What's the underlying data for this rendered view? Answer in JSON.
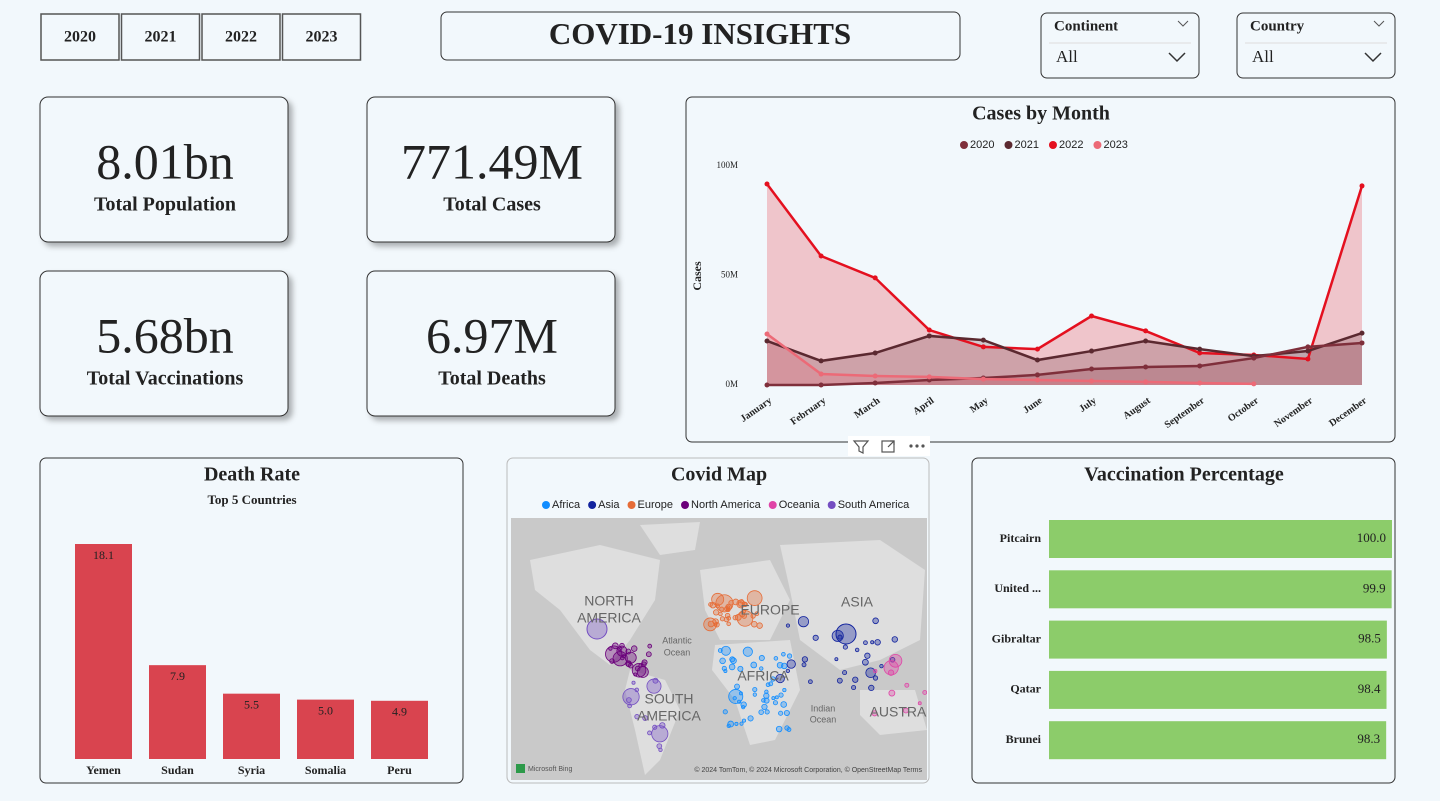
{
  "year_buttons": [
    "2020",
    "2021",
    "2022",
    "2023"
  ],
  "header": {
    "title": "COVID-19 INSIGHTS"
  },
  "slicers": [
    {
      "label": "Continent",
      "value": "All"
    },
    {
      "label": "Country",
      "value": "All"
    }
  ],
  "kpis": [
    {
      "value": "8.01bn",
      "label": "Total Population"
    },
    {
      "value": "771.49M",
      "label": "Total Cases"
    },
    {
      "value": "5.68bn",
      "label": "Total Vaccinations"
    },
    {
      "value": "6.97M",
      "label": "Total Deaths"
    }
  ],
  "chart_data": [
    {
      "type": "area",
      "title": "Cases by Month",
      "y_label": "Cases",
      "categories": [
        "January",
        "February",
        "March",
        "April",
        "May",
        "June",
        "July",
        "August",
        "September",
        "October",
        "November",
        "December"
      ],
      "ylim": [
        0,
        100000000
      ],
      "yticks": [
        {
          "value": 0,
          "label": "0M"
        },
        {
          "value": 50000000,
          "label": "50M"
        },
        {
          "value": 100000000,
          "label": "100M"
        }
      ],
      "series": [
        {
          "name": "2020",
          "color": "#7f2f3b",
          "values": [
            0,
            0,
            900000,
            2300000,
            3200000,
            4600000,
            7300000,
            8200000,
            8700000,
            12300000,
            17400000,
            19200000
          ]
        },
        {
          "name": "2021",
          "color": "#5b2930",
          "values": [
            20100000,
            11000000,
            14600000,
            22400000,
            20500000,
            11400000,
            15500000,
            20100000,
            16400000,
            13200000,
            15500000,
            23700000
          ]
        },
        {
          "name": "2022",
          "color": "#e4101f",
          "values": [
            91800000,
            58900000,
            48900000,
            25100000,
            17400000,
            16400000,
            31500000,
            24700000,
            14600000,
            13700000,
            11900000,
            90900000
          ]
        },
        {
          "name": "2023",
          "color": "#ec6a77",
          "values": [
            23300000,
            5000000,
            4100000,
            3700000,
            2700000,
            2300000,
            1800000,
            1400000,
            900000,
            500000,
            null,
            null
          ]
        }
      ]
    },
    {
      "type": "bar",
      "title": "Death Rate",
      "subtitle": "Top 5 Countries",
      "color": "#d9444f",
      "categories": [
        "Yemen",
        "Sudan",
        "Syria",
        "Somalia",
        "Peru"
      ],
      "values": [
        18.1,
        7.9,
        5.5,
        5.0,
        4.9
      ],
      "value_labels": [
        "18.1",
        "7.9",
        "5.5",
        "5.0",
        "4.9"
      ]
    },
    {
      "type": "hbar",
      "title": "Vaccination Percentage",
      "color": "#8ccc6a",
      "categories": [
        "Pitcairn",
        "United ...",
        "Gibraltar",
        "Qatar",
        "Brunei"
      ],
      "values": [
        100,
        99.9,
        98.5,
        98.4,
        98.3
      ],
      "value_labels": [
        "100.0",
        "99.9",
        "98.5",
        "98.4",
        "98.3"
      ]
    }
  ],
  "map": {
    "title": "Covid Map",
    "legend": [
      {
        "name": "Africa",
        "color": "#118dff"
      },
      {
        "name": "Asia",
        "color": "#12239e"
      },
      {
        "name": "Europe",
        "color": "#e66c37"
      },
      {
        "name": "North America",
        "color": "#6b007b"
      },
      {
        "name": "Oceania",
        "color": "#e044a7"
      },
      {
        "name": "South America",
        "color": "#744ec2"
      }
    ],
    "labels": [
      "NORTH",
      "AMERICA",
      "EUROPE",
      "ASIA",
      "Atlantic",
      "Ocean",
      "AFRICA",
      "SOUTH",
      "AMERICA",
      "Indian",
      "Ocean",
      "AUSTRA"
    ],
    "provider": "Microsoft Bing",
    "attribution": "© 2024 TomTom, © 2024 Microsoft Corporation, © OpenStreetMap  Terms"
  }
}
